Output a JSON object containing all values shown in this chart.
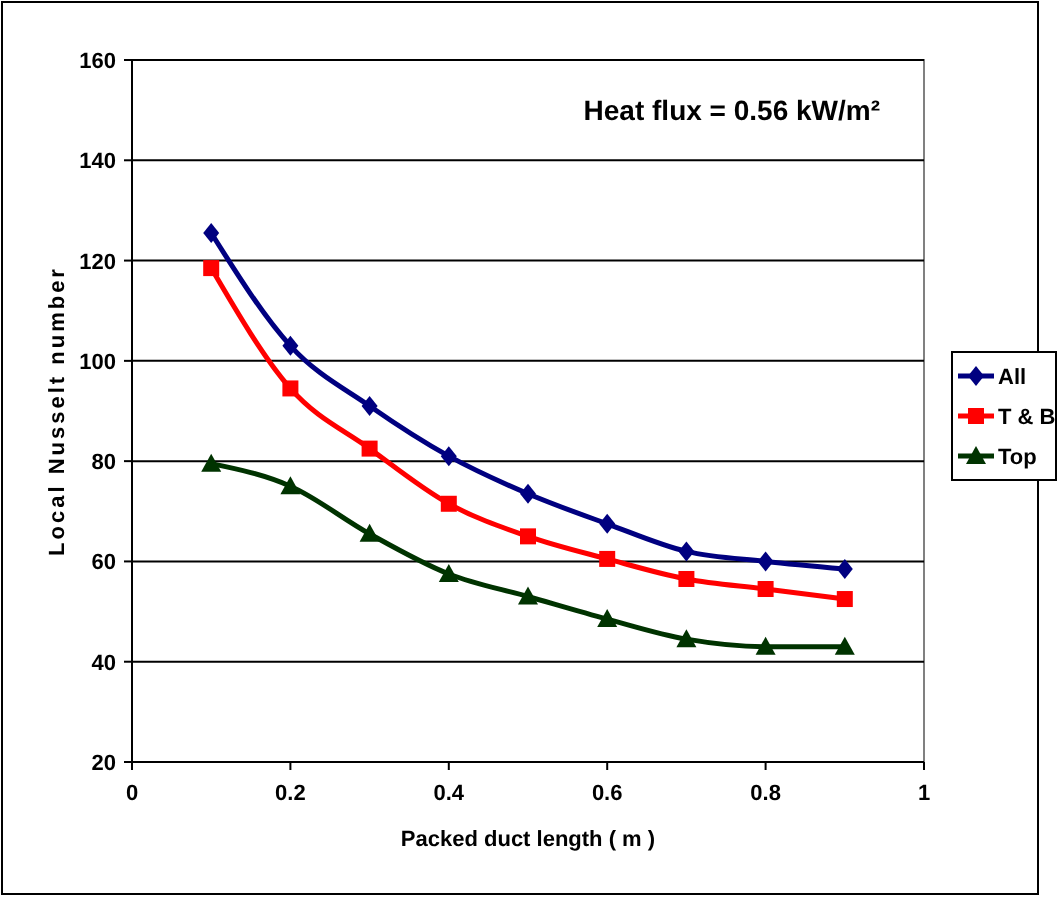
{
  "chart_data": {
    "type": "line",
    "xlabel": "Packed duct length ( m )",
    "ylabel": "Local Nusselt number",
    "annotations": [
      "Heat flux = 0.56 kW/m²"
    ],
    "x": [
      0.1,
      0.2,
      0.3,
      0.4,
      0.5,
      0.6,
      0.7,
      0.8,
      0.9
    ],
    "series": [
      {
        "name": "All",
        "color": "#000080",
        "marker": "diamond",
        "values": [
          125.5,
          103,
          91,
          81,
          73.5,
          67.5,
          62,
          60,
          58.5
        ]
      },
      {
        "name": "T & B",
        "color": "#ff0000",
        "marker": "square",
        "values": [
          118.5,
          94.5,
          82.5,
          71.5,
          65,
          60.5,
          56.5,
          54.5,
          52.5
        ]
      },
      {
        "name": "Top",
        "color": "#003300",
        "marker": "triangle",
        "values": [
          79.5,
          75,
          65.5,
          57.5,
          53,
          48.5,
          44.5,
          43,
          43
        ]
      }
    ],
    "xlim": [
      0,
      1
    ],
    "xticks": [
      0,
      0.2,
      0.4,
      0.6,
      0.8,
      1
    ],
    "ylim": [
      20,
      160
    ],
    "yticks": [
      20,
      40,
      60,
      80,
      100,
      120,
      140,
      160
    ],
    "grid": "y",
    "legend": "right",
    "line_style": "solid"
  }
}
